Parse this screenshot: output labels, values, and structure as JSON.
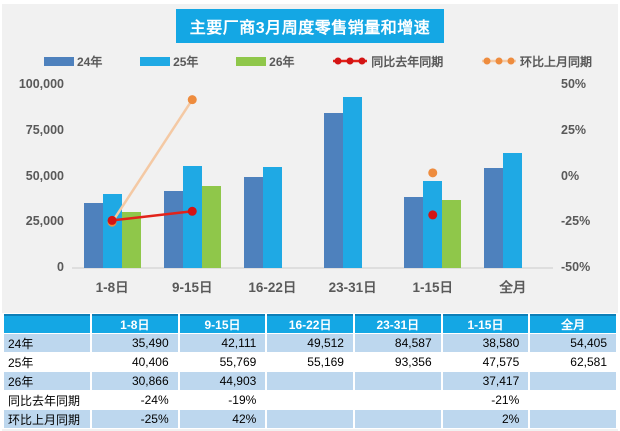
{
  "chart_data": {
    "type": "bar",
    "title": "主要厂商3月周度零售销量和增速",
    "categories": [
      "1-8日",
      "9-15日",
      "16-22日",
      "23-31日",
      "1-15日",
      "全月"
    ],
    "series": [
      {
        "name": "24年",
        "kind": "bar",
        "axis": "left",
        "color": "#4E81BD",
        "values": [
          35490,
          42111,
          49512,
          84587,
          38580,
          54405
        ]
      },
      {
        "name": "25年",
        "kind": "bar",
        "axis": "left",
        "color": "#1FA9E4",
        "values": [
          40406,
          55769,
          55169,
          93356,
          47575,
          62581
        ]
      },
      {
        "name": "26年",
        "kind": "bar",
        "axis": "left",
        "color": "#8FC74A",
        "values": [
          30866,
          44903,
          null,
          null,
          37417,
          null
        ]
      },
      {
        "name": "同比去年同期",
        "kind": "line",
        "axis": "right",
        "color": "#E2231A",
        "marker_color": "#D31414",
        "values": [
          -24,
          -19,
          null,
          null,
          -21,
          null
        ]
      },
      {
        "name": "环比上月同期",
        "kind": "line",
        "axis": "right",
        "color": "#F4C9A4",
        "marker_color": "#EE8C3E",
        "values": [
          -25,
          42,
          null,
          null,
          2,
          null
        ]
      }
    ],
    "left_axis": {
      "range": [
        0,
        100000
      ],
      "tick_values": [
        0,
        25000,
        50000,
        75000,
        100000
      ],
      "tick_labels": [
        "0",
        "25,000",
        "50,000",
        "75,000",
        "100,000"
      ]
    },
    "right_axis": {
      "range": [
        -50,
        50
      ],
      "tick_values": [
        -50,
        -25,
        0,
        25,
        50
      ],
      "tick_labels": [
        "-50%",
        "-25%",
        "0%",
        "25%",
        "50%"
      ]
    },
    "legend_position": "top",
    "grid": false
  },
  "table": {
    "corner_label": "",
    "columns": [
      "1-8日",
      "9-15日",
      "16-22日",
      "23-31日",
      "1-15日",
      "全月"
    ],
    "rows": [
      {
        "label": "24年",
        "values": [
          "35,490",
          "42,111",
          "49,512",
          "84,587",
          "38,580",
          "54,405"
        ]
      },
      {
        "label": "25年",
        "values": [
          "40,406",
          "55,769",
          "55,169",
          "93,356",
          "47,575",
          "62,581"
        ]
      },
      {
        "label": "26年",
        "values": [
          "30,866",
          "44,903",
          "",
          "",
          "37,417",
          ""
        ]
      },
      {
        "label": "同比去年同期",
        "values": [
          "-24%",
          "-19%",
          "",
          "",
          "-21%",
          ""
        ]
      },
      {
        "label": "环比上月同期",
        "values": [
          "-25%",
          "42%",
          "",
          "",
          "2%",
          ""
        ]
      }
    ]
  },
  "colors": {
    "accent_cyan": "#14A7E4",
    "panel_bg": "#F1F1F1",
    "axis_text": "#595959",
    "table_alt_row": "#BDD7EE",
    "bar_blue": "#4E81BD",
    "bar_cyan": "#1FA9E4",
    "bar_green": "#8FC74A",
    "line_red": "#E2231A",
    "marker_red": "#D31414",
    "line_orange": "#F4C9A4",
    "marker_orange": "#EE8C3E"
  }
}
